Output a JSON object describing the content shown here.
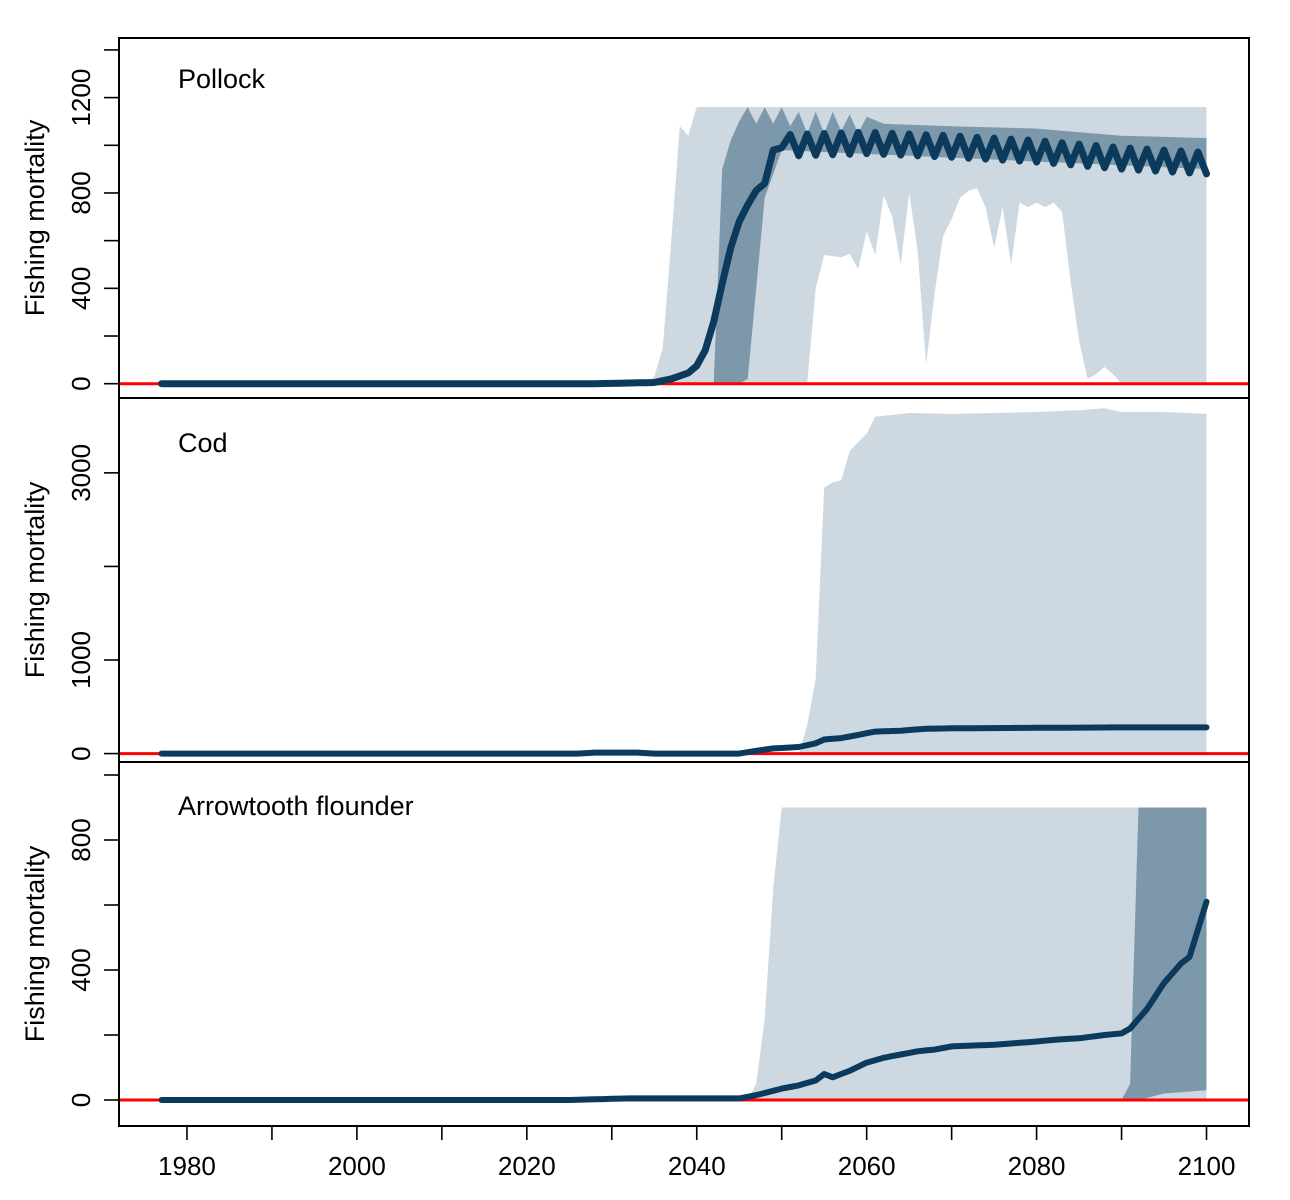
{
  "colors": {
    "median_line": "#0b3a5c",
    "band_light": "#cdd8e1",
    "band_dark": "#7e98ab",
    "reference_line": "#ff0000",
    "axis": "#000000"
  },
  "chart_data": {
    "type": "area",
    "layout": "three stacked panels sharing the x axis",
    "x_axis": {
      "ticks": [
        1980,
        2000,
        2020,
        2040,
        2060,
        2080,
        2100
      ],
      "tick_labels": [
        "1980",
        "2000",
        "2020",
        "2040",
        "2060",
        "2080",
        "2100"
      ],
      "range": [
        1972,
        2105
      ]
    },
    "reference_line": {
      "y": 0,
      "color": "#ff0000"
    },
    "panels": [
      {
        "title": "Pollock",
        "ylabel": "Fishing mortality",
        "ylim": [
          -60,
          1450
        ],
        "yticks_labeled": [
          0,
          400,
          800,
          1200
        ],
        "ytick_labels": [
          "0",
          "400",
          "800",
          "1200"
        ],
        "yticks_minor": [
          200,
          600,
          1000,
          1400
        ],
        "median_width": 7,
        "median_zigzag": {
          "start": 2051,
          "amplitude": 45
        },
        "median": [
          [
            1977,
            0
          ],
          [
            2028,
            0
          ],
          [
            2035,
            5
          ],
          [
            2037,
            20
          ],
          [
            2039,
            45
          ],
          [
            2040,
            75
          ],
          [
            2041,
            140
          ],
          [
            2042,
            260
          ],
          [
            2043,
            420
          ],
          [
            2044,
            570
          ],
          [
            2045,
            680
          ],
          [
            2046,
            750
          ],
          [
            2047,
            810
          ],
          [
            2048,
            840
          ],
          [
            2049,
            980
          ],
          [
            2050,
            990
          ],
          [
            2051,
            1000
          ],
          [
            2060,
            1010
          ],
          [
            2070,
            995
          ],
          [
            2080,
            975
          ],
          [
            2090,
            945
          ],
          [
            2100,
            925
          ]
        ],
        "light_band_upper": [
          [
            1977,
            0
          ],
          [
            2034,
            0
          ],
          [
            2035,
            30
          ],
          [
            2036,
            150
          ],
          [
            2037,
            600
          ],
          [
            2038,
            1080
          ],
          [
            2039,
            1040
          ],
          [
            2040,
            1160
          ],
          [
            2100,
            1160
          ]
        ],
        "light_band_lower": [
          [
            1977,
            0
          ],
          [
            2100,
            0
          ]
        ],
        "light_band_inner_gap": [
          [
            2050,
            0
          ],
          [
            2053,
            0
          ],
          [
            2054,
            400
          ],
          [
            2055,
            540
          ],
          [
            2057,
            530
          ],
          [
            2058,
            545
          ],
          [
            2059,
            480
          ],
          [
            2060,
            640
          ],
          [
            2061,
            540
          ],
          [
            2062,
            790
          ],
          [
            2063,
            700
          ],
          [
            2064,
            500
          ],
          [
            2065,
            800
          ],
          [
            2066,
            560
          ],
          [
            2067,
            80
          ],
          [
            2068,
            380
          ],
          [
            2069,
            620
          ],
          [
            2070,
            690
          ],
          [
            2071,
            780
          ],
          [
            2072,
            810
          ],
          [
            2073,
            820
          ],
          [
            2074,
            740
          ],
          [
            2075,
            570
          ],
          [
            2076,
            740
          ],
          [
            2077,
            500
          ],
          [
            2078,
            760
          ],
          [
            2079,
            740
          ],
          [
            2080,
            760
          ],
          [
            2081,
            740
          ],
          [
            2082,
            760
          ],
          [
            2083,
            720
          ],
          [
            2084,
            430
          ],
          [
            2085,
            180
          ],
          [
            2086,
            20
          ],
          [
            2087,
            40
          ],
          [
            2088,
            70
          ],
          [
            2089,
            40
          ],
          [
            2090,
            0
          ]
        ],
        "dark_band_upper": [
          [
            2042,
            0
          ],
          [
            2043,
            900
          ],
          [
            2044,
            1020
          ],
          [
            2045,
            1100
          ],
          [
            2046,
            1160
          ],
          [
            2047,
            1090
          ],
          [
            2048,
            1160
          ],
          [
            2049,
            1090
          ],
          [
            2050,
            1160
          ],
          [
            2051,
            1080
          ],
          [
            2052,
            1140
          ],
          [
            2053,
            1050
          ],
          [
            2054,
            1140
          ],
          [
            2055,
            1050
          ],
          [
            2056,
            1140
          ],
          [
            2057,
            1060
          ],
          [
            2058,
            1130
          ],
          [
            2059,
            1050
          ],
          [
            2060,
            1120
          ],
          [
            2062,
            1090
          ],
          [
            2070,
            1080
          ],
          [
            2080,
            1070
          ],
          [
            2090,
            1040
          ],
          [
            2100,
            1030
          ]
        ],
        "dark_band_lower": [
          [
            2042,
            0
          ],
          [
            2045,
            0
          ],
          [
            2046,
            20
          ],
          [
            2047,
            400
          ],
          [
            2048,
            780
          ],
          [
            2049,
            880
          ],
          [
            2050,
            980
          ],
          [
            2100,
            900
          ]
        ]
      },
      {
        "title": "Cod",
        "ylabel": "Fishing mortality",
        "ylim": [
          -90,
          3800
        ],
        "yticks_labeled": [
          0,
          1000,
          3000
        ],
        "ytick_labels": [
          "0",
          "1000",
          "3000"
        ],
        "yticks_minor": [
          2000,
          4000
        ],
        "median_width": 6,
        "median": [
          [
            1977,
            0
          ],
          [
            2026,
            0
          ],
          [
            2028,
            10
          ],
          [
            2033,
            10
          ],
          [
            2035,
            0
          ],
          [
            2045,
            0
          ],
          [
            2047,
            30
          ],
          [
            2049,
            55
          ],
          [
            2052,
            70
          ],
          [
            2054,
            110
          ],
          [
            2055,
            150
          ],
          [
            2057,
            165
          ],
          [
            2059,
            200
          ],
          [
            2061,
            235
          ],
          [
            2064,
            245
          ],
          [
            2067,
            265
          ],
          [
            2070,
            270
          ],
          [
            2080,
            275
          ],
          [
            2090,
            280
          ],
          [
            2100,
            280
          ]
        ],
        "light_band_upper": [
          [
            2047,
            0
          ],
          [
            2052,
            0
          ],
          [
            2053,
            300
          ],
          [
            2054,
            800
          ],
          [
            2055,
            2840
          ],
          [
            2056,
            2900
          ],
          [
            2057,
            2920
          ],
          [
            2058,
            3230
          ],
          [
            2059,
            3330
          ],
          [
            2060,
            3420
          ],
          [
            2061,
            3600
          ],
          [
            2065,
            3640
          ],
          [
            2070,
            3630
          ],
          [
            2075,
            3640
          ],
          [
            2080,
            3650
          ],
          [
            2085,
            3670
          ],
          [
            2088,
            3690
          ],
          [
            2090,
            3650
          ],
          [
            2095,
            3650
          ],
          [
            2100,
            3630
          ]
        ],
        "light_band_lower": [
          [
            2047,
            0
          ],
          [
            2100,
            0
          ]
        ]
      },
      {
        "title": "Arrowtooth flounder",
        "ylabel": "Fishing mortality",
        "ylim": [
          -80,
          1040
        ],
        "yticks_labeled": [
          0,
          400,
          800
        ],
        "ytick_labels": [
          "0",
          "400",
          "800"
        ],
        "yticks_minor": [
          200,
          600,
          1000
        ],
        "median_width": 6,
        "median": [
          [
            1977,
            0
          ],
          [
            2025,
            0
          ],
          [
            2032,
            5
          ],
          [
            2045,
            5
          ],
          [
            2047,
            15
          ],
          [
            2050,
            35
          ],
          [
            2052,
            45
          ],
          [
            2054,
            60
          ],
          [
            2055,
            80
          ],
          [
            2056,
            70
          ],
          [
            2058,
            90
          ],
          [
            2060,
            115
          ],
          [
            2062,
            130
          ],
          [
            2064,
            140
          ],
          [
            2066,
            150
          ],
          [
            2068,
            155
          ],
          [
            2070,
            165
          ],
          [
            2075,
            170
          ],
          [
            2080,
            180
          ],
          [
            2082,
            185
          ],
          [
            2085,
            190
          ],
          [
            2088,
            200
          ],
          [
            2090,
            205
          ],
          [
            2091,
            220
          ],
          [
            2093,
            280
          ],
          [
            2095,
            360
          ],
          [
            2097,
            420
          ],
          [
            2098,
            440
          ],
          [
            2100,
            610
          ]
        ],
        "light_band_upper": [
          [
            2045,
            0
          ],
          [
            2046,
            0
          ],
          [
            2047,
            50
          ],
          [
            2048,
            250
          ],
          [
            2049,
            650
          ],
          [
            2050,
            900
          ],
          [
            2100,
            900
          ]
        ],
        "light_band_lower": [
          [
            2045,
            0
          ],
          [
            2100,
            0
          ]
        ],
        "dark_band_upper": [
          [
            2090,
            0
          ],
          [
            2091,
            50
          ],
          [
            2092,
            900
          ],
          [
            2100,
            900
          ]
        ],
        "dark_band_lower": [
          [
            2090,
            0
          ],
          [
            2092,
            0
          ],
          [
            2095,
            20
          ],
          [
            2100,
            30
          ]
        ]
      }
    ]
  }
}
